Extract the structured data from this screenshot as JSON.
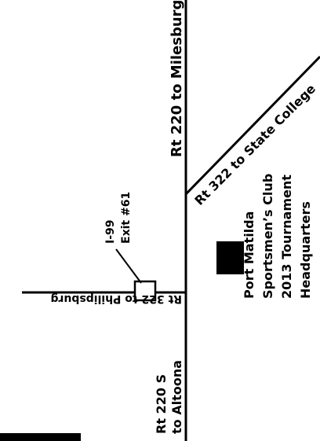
{
  "map": {
    "roads": {
      "rt220_north": "Rt 220 to Milesburg",
      "rt322_east": "Rt 322 to State College",
      "rt322_west": "Rt 322 to Philipsburg",
      "rt220_south_line1": "Rt 220 S",
      "rt220_south_line2": "to Altoona"
    },
    "interstate": {
      "name": "I-99",
      "exit": "Exit #61"
    },
    "destination": {
      "line1": "Port Matilda",
      "line2": "Sportsmen’s Club",
      "line3": "2013 Tournament",
      "line4": "Headquarters"
    },
    "colors": {
      "ink": "#000000",
      "background": "#ffffff"
    }
  }
}
